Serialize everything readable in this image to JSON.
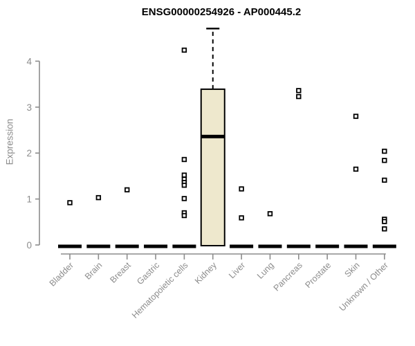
{
  "chart_data": {
    "type": "boxplot",
    "title": "ENSG00000254926 - AP000445.2",
    "ylabel": "Expression",
    "xlabel": "",
    "ylim": [
      0,
      4.75
    ],
    "yticks": [
      0,
      1,
      2,
      3,
      4
    ],
    "grid": false,
    "legend": "none",
    "categories": [
      "Bladder",
      "Brain",
      "Breast",
      "Gastric",
      "Hematopoietic cells",
      "Kidney",
      "Liver",
      "Lung",
      "Pancreas",
      "Prostate",
      "Skin",
      "Unknown / Other"
    ],
    "series": [
      {
        "category": "Bladder",
        "whisker_low": 0,
        "q1": 0,
        "median": 0,
        "q3": 0,
        "whisker_high": 0,
        "outliers": [
          0.92
        ]
      },
      {
        "category": "Brain",
        "whisker_low": 0,
        "q1": 0,
        "median": 0,
        "q3": 0,
        "whisker_high": 0,
        "outliers": [
          1.03
        ]
      },
      {
        "category": "Breast",
        "whisker_low": 0,
        "q1": 0,
        "median": 0,
        "q3": 0,
        "whisker_high": 0,
        "outliers": [
          1.2
        ]
      },
      {
        "category": "Gastric",
        "whisker_low": 0,
        "q1": 0,
        "median": 0,
        "q3": 0,
        "whisker_high": 0,
        "outliers": []
      },
      {
        "category": "Hematopoietic cells",
        "whisker_low": 0,
        "q1": 0,
        "median": 0,
        "q3": 0,
        "whisker_high": 0,
        "outliers": [
          4.24,
          1.86,
          1.52,
          1.43,
          1.36,
          1.3,
          1.01,
          0.7,
          0.64
        ]
      },
      {
        "category": "Kidney",
        "whisker_low": 0,
        "q1": 0,
        "median": 2.36,
        "q3": 3.39,
        "whisker_high": 4.71,
        "outliers": []
      },
      {
        "category": "Liver",
        "whisker_low": 0,
        "q1": 0,
        "median": 0,
        "q3": 0,
        "whisker_high": 0,
        "outliers": [
          1.22,
          0.59
        ]
      },
      {
        "category": "Lung",
        "whisker_low": 0,
        "q1": 0,
        "median": 0,
        "q3": 0,
        "whisker_high": 0,
        "outliers": [
          0.68
        ]
      },
      {
        "category": "Pancreas",
        "whisker_low": 0,
        "q1": 0,
        "median": 0,
        "q3": 0,
        "whisker_high": 0,
        "outliers": [
          3.36,
          3.23
        ]
      },
      {
        "category": "Prostate",
        "whisker_low": 0,
        "q1": 0,
        "median": 0,
        "q3": 0,
        "whisker_high": 0,
        "outliers": []
      },
      {
        "category": "Skin",
        "whisker_low": 0,
        "q1": 0,
        "median": 0,
        "q3": 0,
        "whisker_high": 0,
        "outliers": [
          2.8,
          1.65
        ]
      },
      {
        "category": "Unknown / Other",
        "whisker_low": 0,
        "q1": 0,
        "median": 0,
        "q3": 0,
        "whisker_high": 0,
        "outliers": [
          2.04,
          1.84,
          1.41,
          0.56,
          0.51,
          0.35
        ]
      }
    ],
    "colors": {
      "box_fill": "#EEE8CD",
      "box_border": "#000000",
      "median": "#000000",
      "whisker": "#000000",
      "outlier_stroke": "#000000",
      "outlier_fill": "#ffffff",
      "axis": "#8c8c8c",
      "tick_label": "#8c8c8c",
      "title": "#000000",
      "background": "#ffffff"
    }
  }
}
